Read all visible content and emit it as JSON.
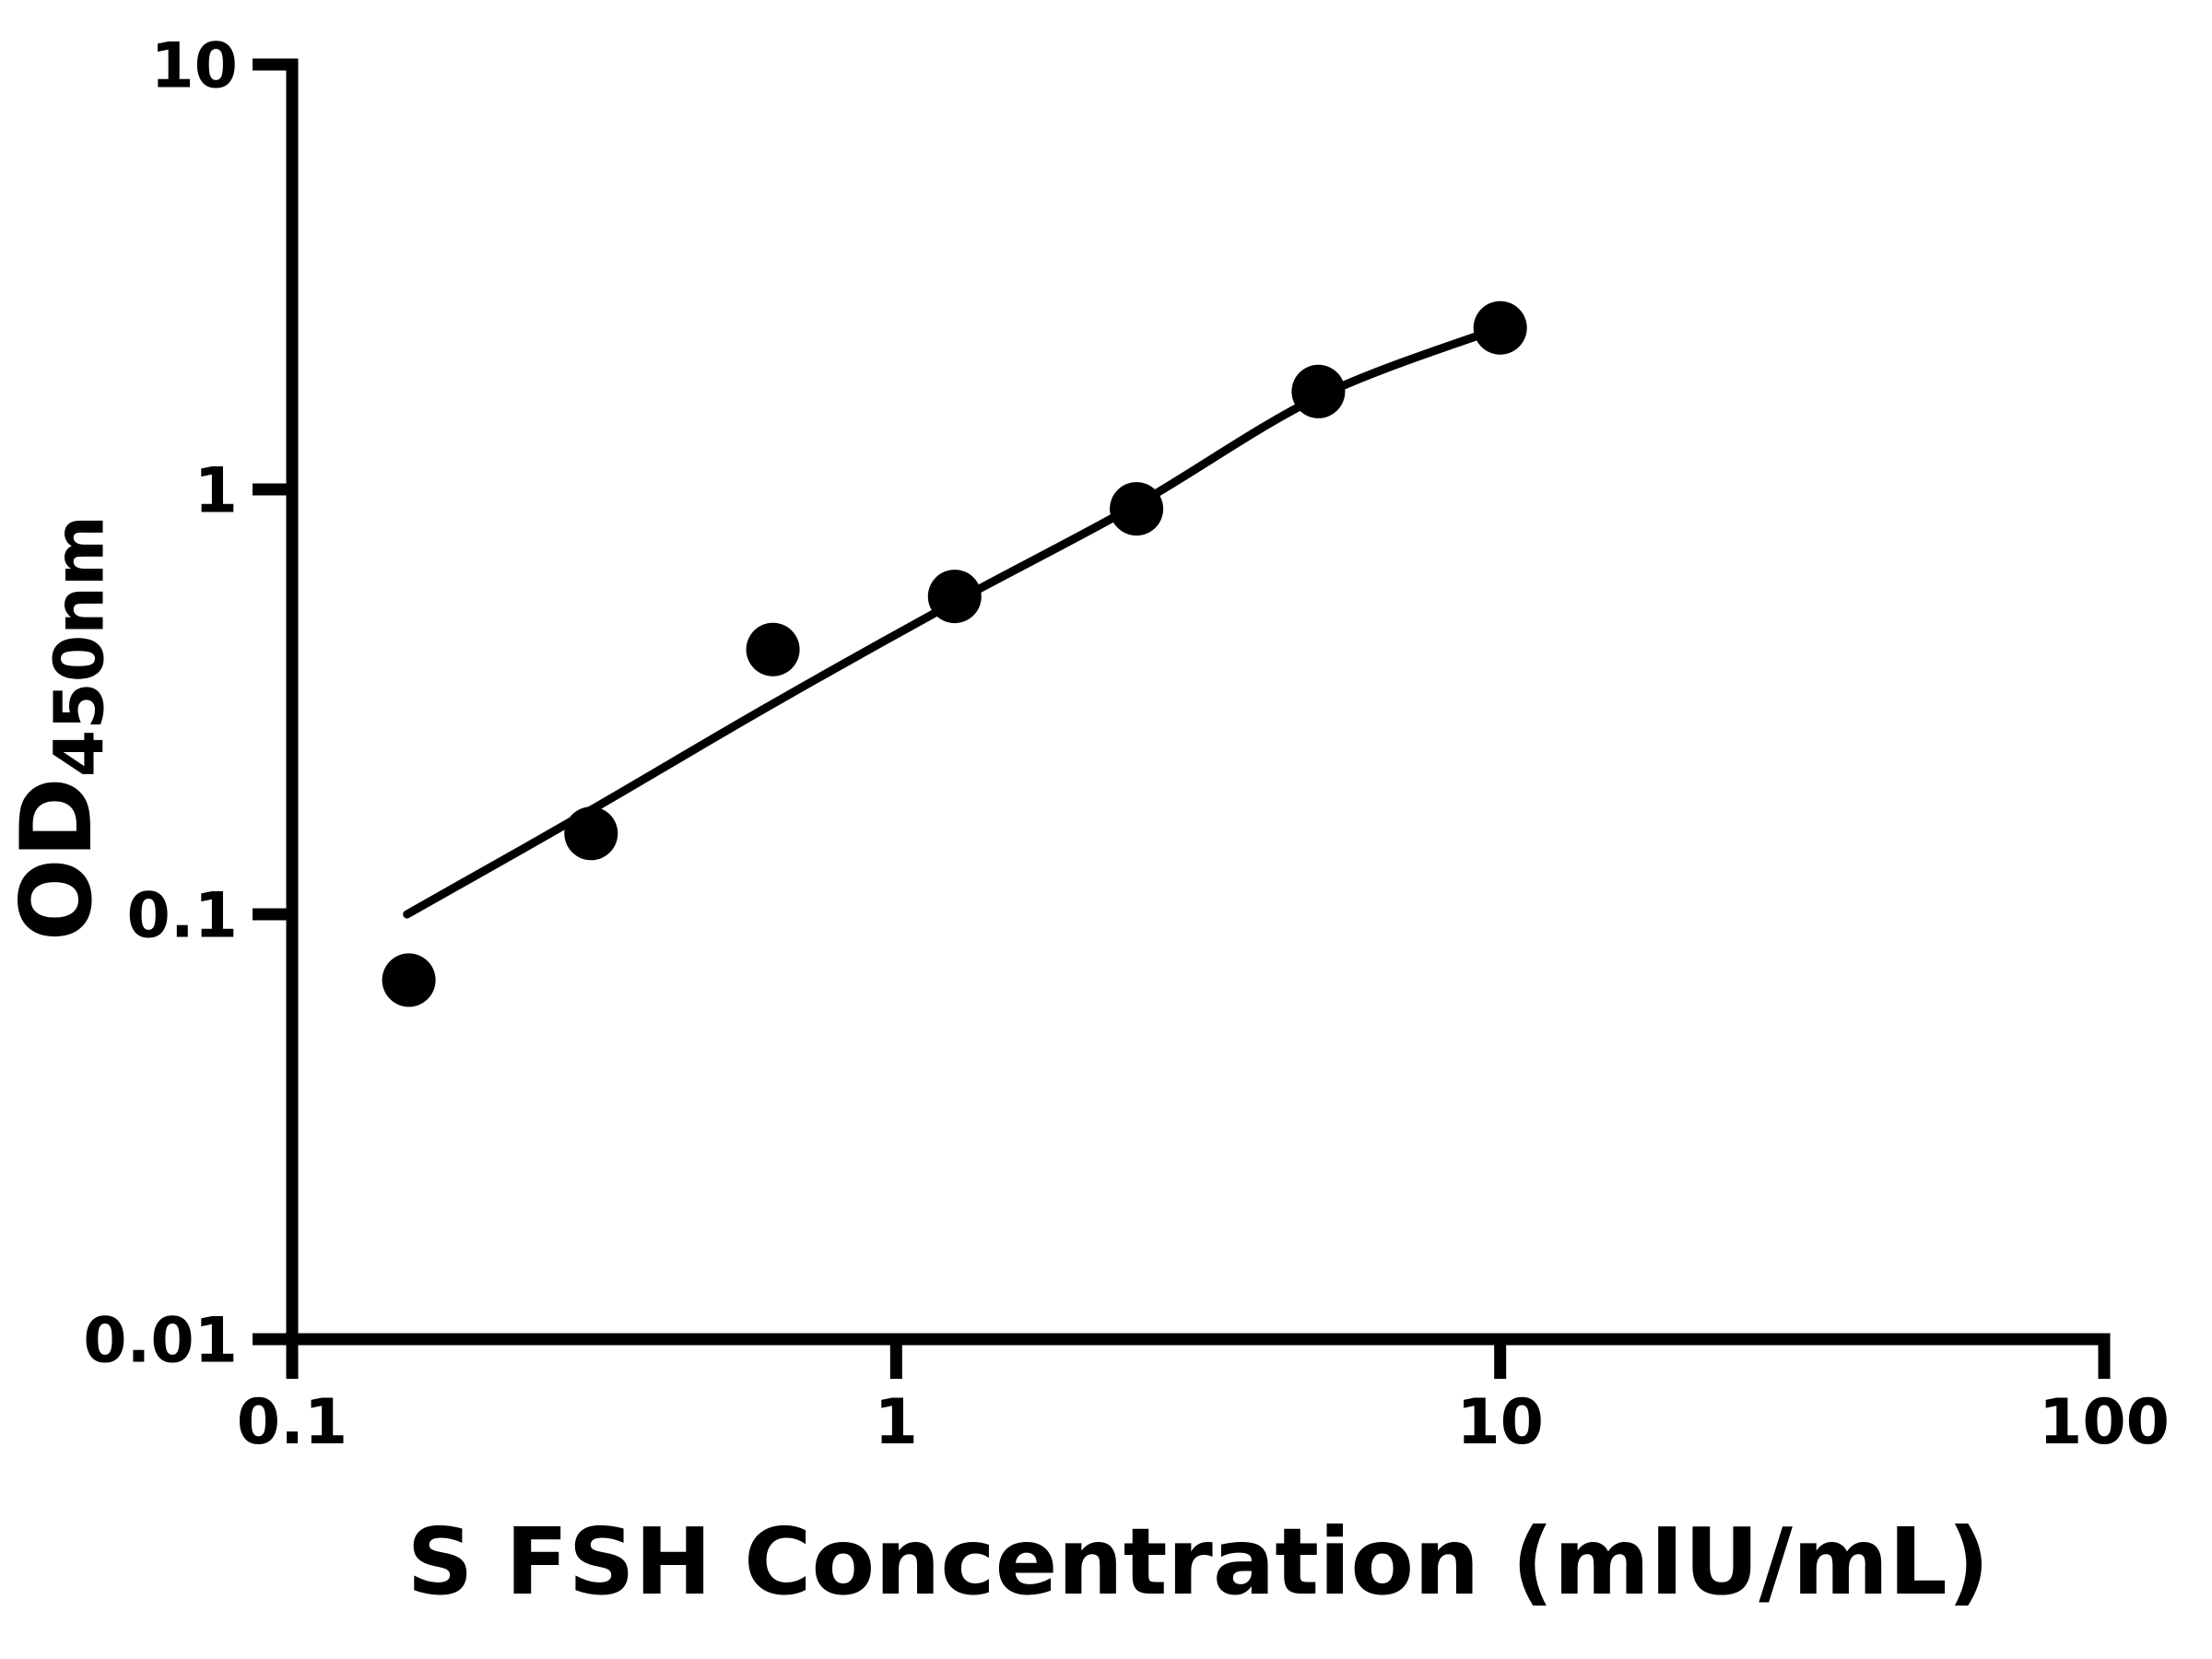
{
  "figure": {
    "background_color": "#ffffff",
    "ink_color": "#000000"
  },
  "chart_data": {
    "type": "scatter",
    "title": "",
    "xlabel": "S FSH Concentration (mIU/mL)",
    "ylabel": "OD450nm",
    "ylabel_base": "OD",
    "ylabel_subscript": "450nm",
    "x_scale": "log",
    "y_scale": "log",
    "xlim": [
      0.1,
      100
    ],
    "ylim": [
      0.01,
      10
    ],
    "x_tick_values": [
      0.1,
      1,
      10,
      100
    ],
    "x_tick_labels": [
      "0.1",
      "1",
      "10",
      "100"
    ],
    "y_tick_values": [
      10,
      1,
      0.1,
      0.01
    ],
    "y_tick_labels": [
      "10",
      "1",
      "0.1",
      "0.01"
    ],
    "grid": false,
    "legend": "none",
    "series": [
      {
        "name": "standard data points",
        "kind": "scatter",
        "marker": "filled-circle",
        "color": "#000000",
        "points": [
          {
            "x": 0.156,
            "y": 0.07
          },
          {
            "x": 0.3125,
            "y": 0.155
          },
          {
            "x": 0.625,
            "y": 0.42
          },
          {
            "x": 1.25,
            "y": 0.56
          },
          {
            "x": 2.5,
            "y": 0.9
          },
          {
            "x": 5,
            "y": 1.7
          },
          {
            "x": 10,
            "y": 2.4
          }
        ]
      },
      {
        "name": "fitted curve",
        "kind": "line",
        "color": "#000000",
        "points": [
          {
            "x": 0.155,
            "y": 0.1
          },
          {
            "x": 0.3125,
            "y": 0.176
          },
          {
            "x": 0.625,
            "y": 0.313
          },
          {
            "x": 1.25,
            "y": 0.543
          },
          {
            "x": 2.5,
            "y": 0.92
          },
          {
            "x": 5,
            "y": 1.65
          },
          {
            "x": 10,
            "y": 2.4
          }
        ]
      }
    ]
  }
}
